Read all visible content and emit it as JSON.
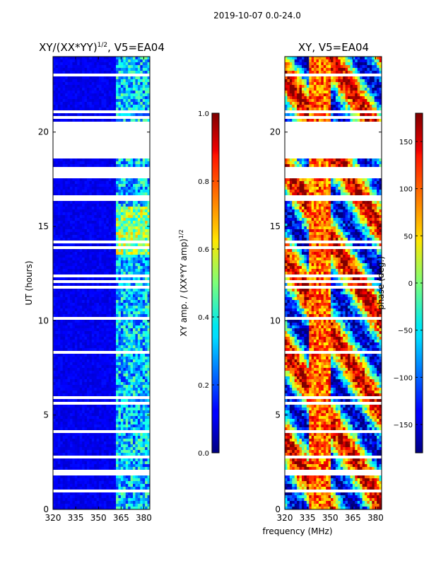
{
  "chart_data": [
    {
      "type": "heatmap",
      "suptitle": "2019-10-07 0.0-24.0",
      "title": "XY/(XX*YY)^{1/2}, V5=EA04",
      "title_main": "XY/(XX*YY)",
      "title_exp": "1/2",
      "title_tail": ", V5=EA04",
      "ylabel": "UT (hours)",
      "xlabel": "",
      "xlim": [
        320,
        384
      ],
      "ylim": [
        0,
        24
      ],
      "xticks": [
        320,
        335,
        350,
        365,
        380
      ],
      "yticks": [
        0,
        5,
        10,
        15,
        20
      ],
      "colorbar": {
        "label": "XY amp. / (XX*YY amp)^{1/2}",
        "label_main": "XY amp. / (XX*YY amp)",
        "label_exp": "1/2",
        "range": [
          0.0,
          1.0
        ],
        "ticks": [
          "0.0",
          "0.2",
          "0.4",
          "0.6",
          "0.8",
          "1.0"
        ]
      },
      "colormap": "jet",
      "typical_value_low_freq": 0.05,
      "typical_value_high_freq": 0.35
    },
    {
      "type": "heatmap",
      "title": "XY, V5=EA04",
      "ylabel": "",
      "xlabel": "frequency (MHz)",
      "xlim": [
        320,
        384
      ],
      "ylim": [
        0,
        24
      ],
      "xticks": [
        320,
        335,
        350,
        365,
        380
      ],
      "yticks": [
        0,
        5,
        10,
        15,
        20
      ],
      "colorbar": {
        "label": "phase (deg.)",
        "range": [
          -180,
          180
        ],
        "ticks": [
          "−150",
          "−100",
          "−50",
          "0",
          "50",
          "100",
          "150"
        ]
      },
      "colormap": "jet"
    }
  ],
  "data_gaps_hours": [
    [
      18.55,
      20.55
    ],
    [
      17.6,
      18.2
    ],
    [
      1.8,
      2.05
    ],
    [
      21.05,
      21.2
    ]
  ],
  "colors": {
    "axis": "#000000",
    "background": "#ffffff",
    "flagged": "#ffffff"
  }
}
